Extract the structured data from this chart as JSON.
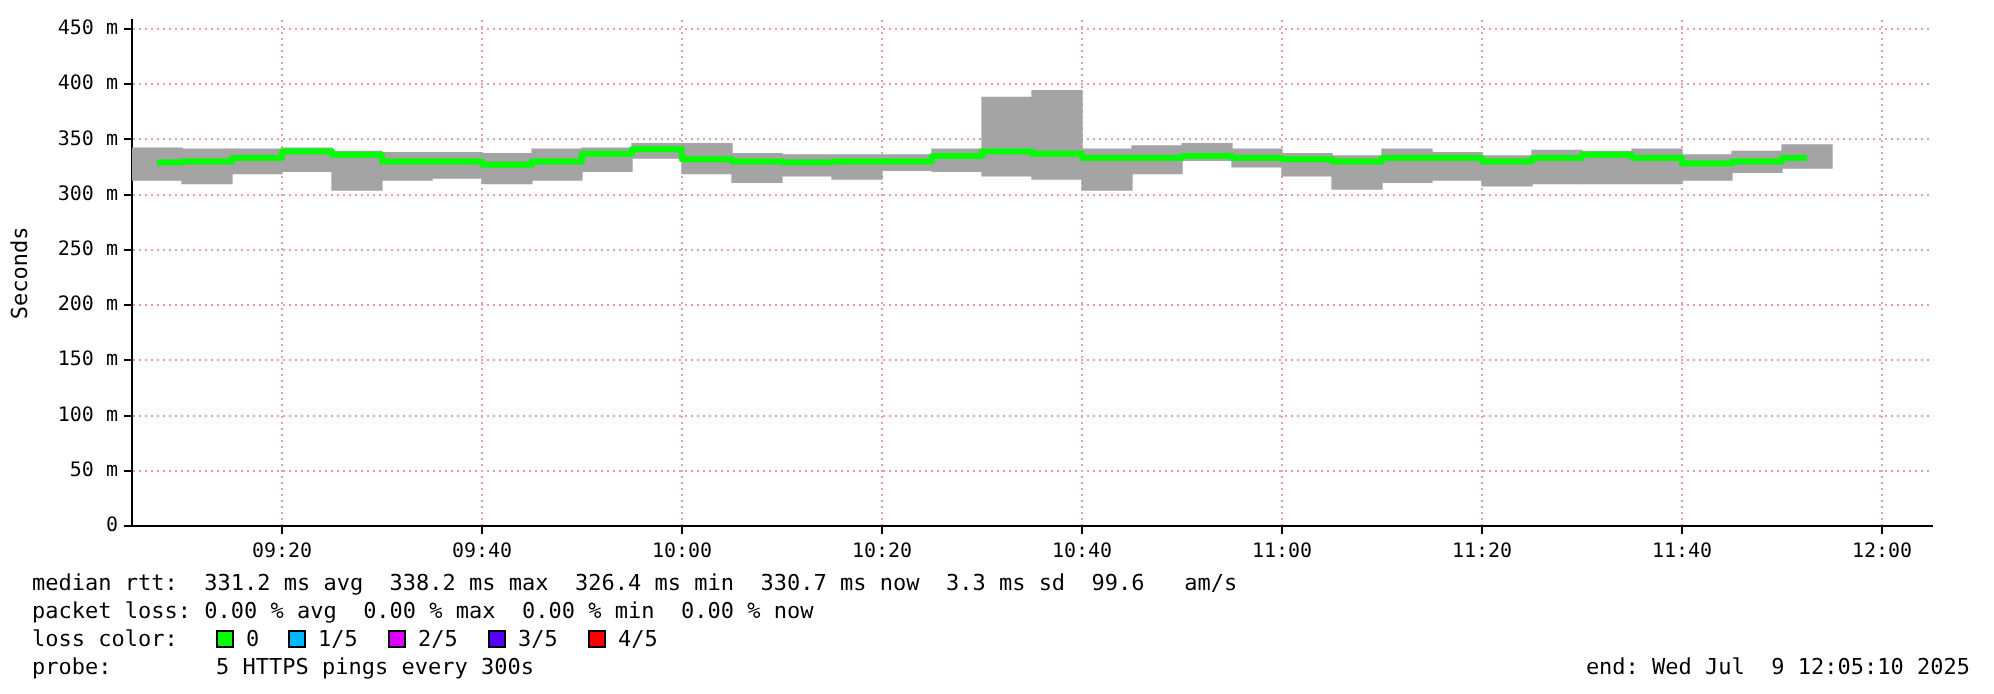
{
  "chart_data": {
    "type": "bar",
    "ylabel": "Seconds",
    "x": [
      9.125,
      9.2083,
      9.2917,
      9.375,
      9.4583,
      9.5417,
      9.625,
      9.7083,
      9.7917,
      9.875,
      9.9583,
      10.0417,
      10.125,
      10.2083,
      10.2917,
      10.375,
      10.4583,
      10.5417,
      10.625,
      10.7083,
      10.7917,
      10.875,
      10.9583,
      11.0417,
      11.125,
      11.2083,
      11.2917,
      11.375,
      11.4583,
      11.5417,
      11.625,
      11.7083,
      11.7917,
      11.875
    ],
    "series": [
      {
        "color": "#a4a4a4",
        "base": [
          313,
          310,
          319,
          321,
          304,
          313,
          315,
          310,
          313,
          321,
          333,
          319,
          311,
          317,
          314,
          322,
          321,
          317,
          314,
          304,
          319,
          331,
          325,
          317,
          305,
          311,
          313,
          308,
          310,
          310,
          310,
          313,
          320,
          324
        ],
        "values": [
          29,
          31,
          22,
          21,
          35,
          25,
          23,
          27,
          28,
          21,
          13,
          27,
          26,
          19,
          22,
          14,
          20,
          71,
          80,
          37,
          25,
          15,
          16,
          20,
          30,
          30,
          25,
          27,
          30,
          29,
          31,
          23,
          19,
          21
        ]
      },
      {
        "type": "step",
        "color": "#00ff00",
        "values": [
          329,
          330,
          333,
          339,
          336,
          330,
          330,
          327,
          330,
          337,
          341,
          332,
          330,
          329,
          330,
          330,
          335,
          339,
          337,
          333,
          333,
          335,
          333,
          332,
          330,
          333,
          333,
          330,
          333,
          336,
          333,
          328,
          330,
          333
        ]
      }
    ],
    "xlim": [
      9.0833,
      12.0833
    ],
    "xticks": [
      {
        "value": 9.3333,
        "label": "09:20"
      },
      {
        "value": 9.6667,
        "label": "09:40"
      },
      {
        "value": 10,
        "label": "10:00"
      },
      {
        "value": 10.3333,
        "label": "10:20"
      },
      {
        "value": 10.6667,
        "label": "10:40"
      },
      {
        "value": 11,
        "label": "11:00"
      },
      {
        "value": 11.3333,
        "label": "11:20"
      },
      {
        "value": 11.6667,
        "label": "11:40"
      },
      {
        "value": 12,
        "label": "12:00"
      }
    ],
    "ylim": [
      0,
      458
    ],
    "yticks": [
      0,
      {
        "value": 50,
        "label": "50 m"
      },
      {
        "value": 100,
        "label": "100 m"
      },
      {
        "value": 150,
        "label": "150 m"
      },
      {
        "value": 200,
        "label": "200 m"
      },
      {
        "value": 250,
        "label": "250 m"
      },
      {
        "value": 300,
        "label": "300 m"
      },
      {
        "value": 350,
        "label": "350 m"
      },
      {
        "value": 400,
        "label": "400 m"
      },
      {
        "value": 450,
        "label": "450 m"
      }
    ],
    "grid": true,
    "legend": false,
    "marker": "none",
    "annotations": [
      "median rtt:  331.2 ms avg  338.2 ms max  326.4 ms min  330.7 ms now  3.3 ms sd  99.6   am/s",
      "packet loss: 0.00 % avg  0.00 % max  0.00 % min  0.00 % now",
      "loss color:",
      "0",
      "1/5",
      "2/5",
      "3/5",
      "4/5",
      "probe:",
      "5 HTTPS pings every 300s",
      "end: Wed Jul  9 12:05:10 2025"
    ]
  }
}
